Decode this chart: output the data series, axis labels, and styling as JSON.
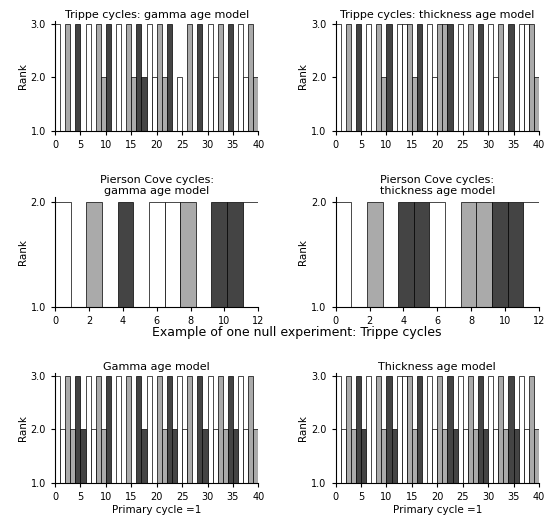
{
  "fig_width": 5.5,
  "fig_height": 5.25,
  "dpi": 100,
  "background_color": "#ffffff",
  "row1_titles": [
    "Trippe cycles: gamma age model",
    "Trippe cycles: thickness age model"
  ],
  "row2_title_left": "Pierson Cove cycles:\ngamma age model",
  "row2_title_right": "Pierson Cove cycles:\nthickness age model",
  "row3_super_title": "Example of one null experiment: Trippe cycles",
  "row3_titles": [
    "Gamma age model",
    "Thickness age model"
  ],
  "xlabel_bottom": "Primary cycle =1",
  "ylabel": "Rank",
  "trippe_xlim": [
    0,
    40
  ],
  "pierson_xlim": [
    0,
    12
  ],
  "trippe_ylim": [
    1.0,
    3.05
  ],
  "pierson_ylim": [
    1.0,
    2.05
  ],
  "trippe_yticks": [
    1.0,
    2.0,
    3.0
  ],
  "pierson_yticks": [
    1.0,
    2.0
  ],
  "trippe_xticks": [
    0,
    5,
    10,
    15,
    20,
    25,
    30,
    35,
    40
  ],
  "pierson_xticks": [
    0,
    2,
    4,
    6,
    8,
    10,
    12
  ],
  "trippe_n": 40,
  "pierson_n": 13,
  "trippe_gamma_ranks": [
    3,
    1,
    3,
    1,
    3,
    1,
    3,
    1,
    3,
    2,
    3,
    1,
    3,
    1,
    3,
    2,
    3,
    2,
    3,
    2,
    3,
    2,
    3,
    1,
    2,
    1,
    3,
    1,
    3,
    1,
    3,
    2,
    3,
    1,
    3,
    1,
    3,
    2,
    3,
    2
  ],
  "trippe_thickness_ranks": [
    3,
    1,
    3,
    1,
    3,
    1,
    3,
    1,
    3,
    2,
    3,
    1,
    3,
    3,
    3,
    2,
    3,
    1,
    3,
    2,
    3,
    3,
    3,
    1,
    3,
    1,
    3,
    1,
    3,
    1,
    3,
    2,
    3,
    1,
    3,
    1,
    3,
    3,
    3,
    2
  ],
  "pierson_gamma_ranks": [
    2,
    1,
    2,
    1,
    2,
    1,
    2,
    2,
    2,
    1,
    2,
    2,
    2
  ],
  "pierson_thickness_ranks": [
    2,
    1,
    2,
    1,
    2,
    2,
    2,
    1,
    2,
    2,
    2,
    2,
    2
  ],
  "null_gamma_ranks": [
    3,
    2,
    3,
    2,
    3,
    2,
    3,
    2,
    3,
    2,
    3,
    1,
    3,
    1,
    3,
    1,
    3,
    2,
    3,
    1,
    3,
    2,
    3,
    2,
    3,
    2,
    3,
    1,
    3,
    2,
    3,
    2,
    3,
    2,
    3,
    2,
    3,
    2,
    3,
    2
  ],
  "null_thickness_ranks": [
    3,
    2,
    3,
    2,
    3,
    2,
    3,
    1,
    3,
    2,
    3,
    2,
    3,
    3,
    3,
    2,
    3,
    1,
    3,
    2,
    3,
    2,
    3,
    2,
    3,
    2,
    3,
    2,
    3,
    2,
    3,
    2,
    3,
    2,
    3,
    2,
    3,
    2,
    3,
    2
  ]
}
